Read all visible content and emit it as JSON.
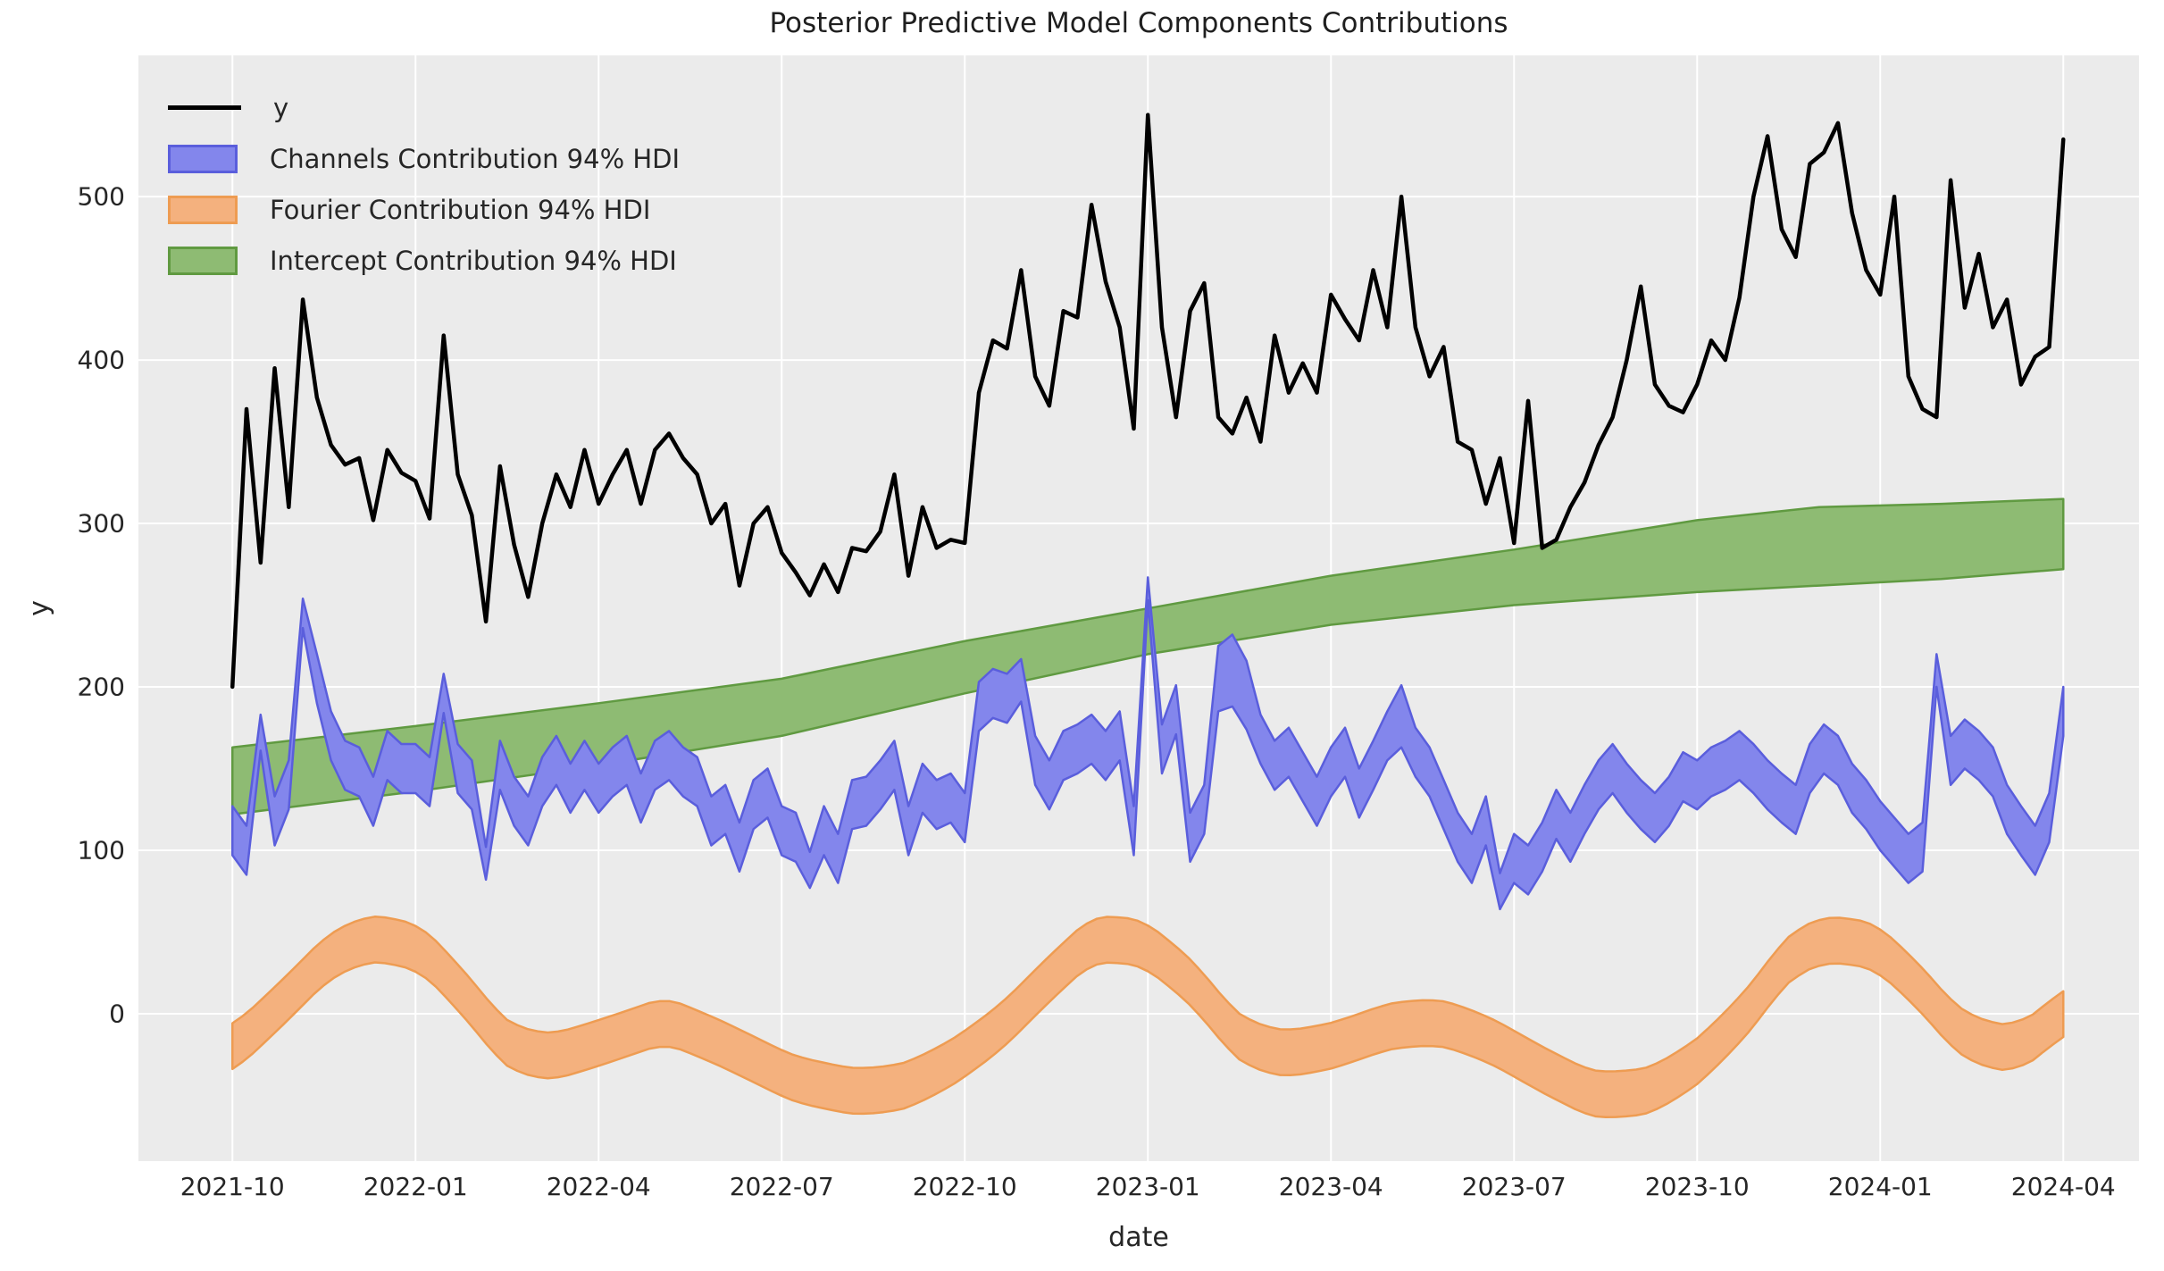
{
  "figure": {
    "title": "Posterior Predictive Model Components Contributions",
    "xlabel": "date",
    "ylabel": "y",
    "axes_bg": "#ebebeb",
    "grid_color": "#ffffff",
    "text_color": "#262626"
  },
  "legend": {
    "items": [
      {
        "label": "y",
        "type": "line",
        "color": "#000000"
      },
      {
        "label": "Channels Contribution 94% HDI",
        "type": "patch",
        "fill": "#8386ec",
        "edge": "#5a5edc"
      },
      {
        "label": "Fourier Contribution 94% HDI",
        "type": "patch",
        "fill": "#f4b17e",
        "edge": "#ee9c52"
      },
      {
        "label": "Intercept Contribution 94% HDI",
        "type": "patch",
        "fill": "#8ebb73",
        "edge": "#609a41"
      }
    ]
  },
  "chart_data": {
    "type": "line+bands",
    "title": "Posterior Predictive Model Components Contributions",
    "xlabel": "date",
    "ylabel": "y",
    "x_start_date": "2021-10-01",
    "x_end_date": "2024-04-01",
    "step_days": 7,
    "x_tick_labels": [
      "2021-10",
      "2022-01",
      "2022-04",
      "2022-07",
      "2022-10",
      "2023-01",
      "2023-04",
      "2023-07",
      "2023-10",
      "2024-01",
      "2024-04"
    ],
    "x_tick_months": [
      0,
      3,
      6,
      9,
      12,
      15,
      18,
      21,
      24,
      27,
      30
    ],
    "y_ticks": [
      0,
      100,
      200,
      300,
      400,
      500
    ],
    "xlim_months": [
      -1.54,
      31.24
    ],
    "ylim": [
      -90.2,
      586.4
    ],
    "grid": true,
    "legend_position": "upper left",
    "series": {
      "y_line": {
        "name": "y",
        "color": "#000000",
        "linewidth": 4.5,
        "months_span": 30,
        "values": [
          200,
          370,
          276,
          395,
          310,
          437,
          377,
          348,
          336,
          340,
          302,
          345,
          331,
          326,
          303,
          415,
          330,
          305,
          240,
          335,
          287,
          255,
          300,
          330,
          310,
          345,
          312,
          330,
          345,
          312,
          345,
          355,
          340,
          330,
          300,
          312,
          262,
          300,
          310,
          282,
          270,
          256,
          275,
          258,
          285,
          283,
          295,
          330,
          268,
          310,
          285,
          290,
          288,
          380,
          412,
          407,
          455,
          390,
          372,
          430,
          426,
          495,
          448,
          420,
          358,
          550,
          420,
          365,
          430,
          447,
          365,
          355,
          377,
          350,
          415,
          380,
          398,
          380,
          440,
          425,
          412,
          455,
          420,
          500,
          420,
          390,
          408,
          350,
          345,
          312,
          340,
          288,
          375,
          285,
          290,
          310,
          325,
          348,
          365,
          400,
          445,
          385,
          372,
          368,
          385,
          412,
          400,
          438,
          500,
          537,
          480,
          463,
          520,
          527,
          545,
          490,
          455,
          440,
          500,
          390,
          370,
          365,
          510,
          432,
          465,
          420,
          437,
          385,
          402,
          408,
          535
        ]
      },
      "channels_band": {
        "name": "Channels Contribution 94% HDI",
        "fill": "#8386ec",
        "edge": "#5a5edc",
        "months_span": 30,
        "center": [
          112,
          100,
          172,
          118,
          140,
          245,
          205,
          170,
          152,
          148,
          130,
          158,
          150,
          150,
          142,
          196,
          150,
          140,
          92,
          152,
          130,
          118,
          142,
          155,
          138,
          152,
          138,
          148,
          155,
          132,
          152,
          158,
          148,
          142,
          118,
          125,
          102,
          128,
          135,
          112,
          108,
          88,
          112,
          95,
          128,
          130,
          140,
          152,
          112,
          138,
          128,
          132,
          120,
          188,
          196,
          193,
          204,
          155,
          140,
          158,
          162,
          168,
          158,
          170,
          112,
          260,
          162,
          186,
          108,
          125,
          205,
          210,
          195,
          168,
          152,
          160,
          145,
          130,
          148,
          160,
          135,
          152,
          170,
          182,
          160,
          148,
          128,
          108,
          95,
          118,
          75,
          95,
          88,
          102,
          122,
          108,
          125,
          140,
          150,
          138,
          128,
          120,
          130,
          145,
          140,
          148,
          152,
          158,
          150,
          140,
          132,
          125,
          150,
          162,
          155,
          138,
          128,
          115,
          105,
          95,
          102,
          210,
          155,
          165,
          158,
          148,
          125,
          112,
          100,
          120,
          185
        ],
        "width_default": 30,
        "width_overrides": {
          "2": 22,
          "5": 18,
          "15": 24,
          "18": 20,
          "41": 22,
          "56": 26,
          "65": 14,
          "70": 40,
          "71": 44,
          "72": 42,
          "83": 38,
          "90": 22,
          "121": 20,
          "130": 30
        }
      },
      "fourier_band": {
        "name": "Fourier Contribution 94% HDI",
        "fill": "#f4b17e",
        "edge": "#ee9c52",
        "halfwidth": 14,
        "anchors_months": [
          0,
          0.8,
          1.6,
          2.3,
          3.1,
          3.8,
          4.5,
          5.2,
          6,
          7.1,
          8,
          9.2,
          10.2,
          11,
          11.8,
          12.6,
          13.4,
          14.1,
          14.9,
          15.7,
          16.5,
          17.2,
          18,
          19,
          19.8,
          20.6,
          21.5,
          22.3,
          23.2,
          24,
          24.8,
          25.5,
          26.1,
          26.9,
          27.6,
          28.3,
          29,
          29.5,
          30
        ],
        "center": [
          -22,
          6,
          36,
          47,
          40,
          12,
          -20,
          -27,
          -18,
          -4,
          -18,
          -40,
          -48,
          -45,
          -30,
          -8,
          22,
          46,
          44,
          20,
          -16,
          -25,
          -20,
          -7,
          -5,
          -16,
          -35,
          -50,
          -48,
          -30,
          0,
          35,
          46,
          42,
          18,
          -12,
          -22,
          -16,
          2
        ]
      },
      "intercept_band": {
        "name": "Intercept Contribution 94% HDI",
        "fill": "#8ebb73",
        "edge": "#609a41",
        "anchors_months": [
          0,
          3,
          6,
          9,
          12,
          15,
          18,
          21,
          24,
          26,
          28,
          30
        ],
        "lo": [
          122,
          136,
          152,
          170,
          196,
          220,
          238,
          250,
          258,
          262,
          266,
          272
        ],
        "hi": [
          163,
          176,
          190,
          205,
          228,
          248,
          268,
          284,
          302,
          310,
          312,
          315
        ]
      }
    }
  }
}
